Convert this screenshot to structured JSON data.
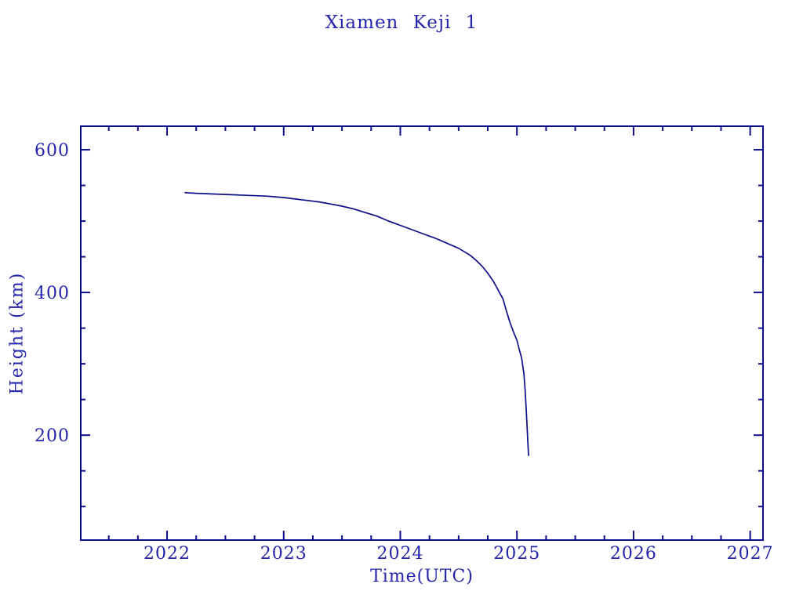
{
  "chart_data": {
    "type": "line",
    "title": "Xiamen Keji 1",
    "xlabel": "Time(UTC)",
    "ylabel": "Height (km)",
    "xlim": [
      2021.26,
      2027.11
    ],
    "ylim": [
      53,
      633
    ],
    "xticks": [
      2022,
      2023,
      2024,
      2025,
      2026,
      2027
    ],
    "xtick_labels": [
      "2022",
      "2023",
      "2024",
      "2025",
      "2026",
      "2027"
    ],
    "x_minor_step": 0.25,
    "yticks": [
      200,
      400,
      600
    ],
    "ytick_labels": [
      "200",
      "400",
      "600"
    ],
    "y_minor_step": 50,
    "grid": false,
    "legend": null,
    "colors": {
      "frame": "#0d0d8c",
      "line": "#0d0d8c",
      "text": "#2424ad",
      "background": "#ffffff"
    },
    "series": [
      {
        "name": "Xiamen Keji 1 height",
        "points": [
          [
            2022.15,
            540
          ],
          [
            2022.25,
            539
          ],
          [
            2022.4,
            538
          ],
          [
            2022.55,
            537
          ],
          [
            2022.7,
            536
          ],
          [
            2022.85,
            535
          ],
          [
            2023.0,
            533
          ],
          [
            2023.1,
            531
          ],
          [
            2023.2,
            529
          ],
          [
            2023.3,
            527
          ],
          [
            2023.4,
            524
          ],
          [
            2023.5,
            521
          ],
          [
            2023.6,
            517
          ],
          [
            2023.7,
            512
          ],
          [
            2023.8,
            507
          ],
          [
            2023.9,
            500
          ],
          [
            2024.0,
            494
          ],
          [
            2024.1,
            488
          ],
          [
            2024.2,
            482
          ],
          [
            2024.3,
            476
          ],
          [
            2024.4,
            469
          ],
          [
            2024.5,
            462
          ],
          [
            2024.6,
            452
          ],
          [
            2024.65,
            445
          ],
          [
            2024.7,
            437
          ],
          [
            2024.75,
            427
          ],
          [
            2024.8,
            415
          ],
          [
            2024.85,
            400
          ],
          [
            2024.88,
            391
          ],
          [
            2024.91,
            374
          ],
          [
            2024.94,
            358
          ],
          [
            2024.97,
            345
          ],
          [
            2025.0,
            333
          ],
          [
            2025.02,
            320
          ],
          [
            2025.04,
            308
          ],
          [
            2025.06,
            286
          ],
          [
            2025.07,
            264
          ],
          [
            2025.08,
            235
          ],
          [
            2025.09,
            202
          ],
          [
            2025.095,
            186
          ],
          [
            2025.1,
            171
          ]
        ]
      }
    ]
  }
}
